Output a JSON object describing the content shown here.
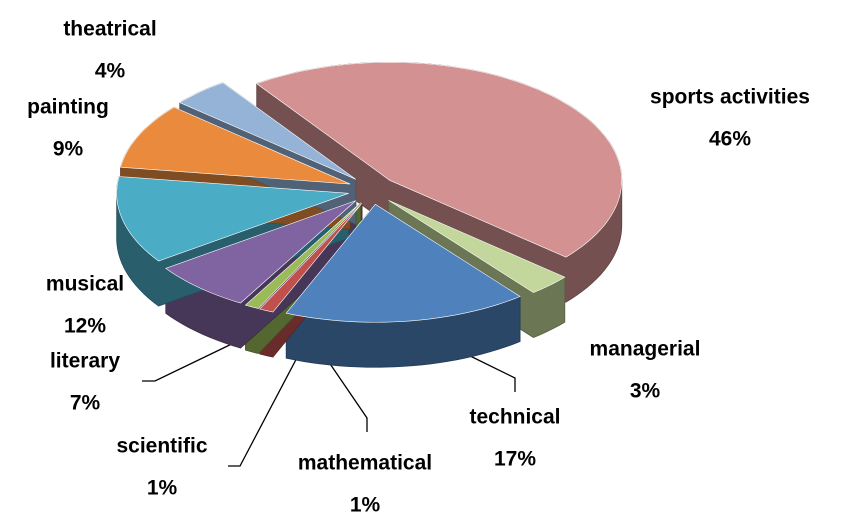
{
  "chart_data": {
    "type": "pie",
    "categories": [
      "sports activities",
      "managerial",
      "technical",
      "mathematical",
      "scientific",
      "literary",
      "musical",
      "painting",
      "theatrical"
    ],
    "values": [
      46,
      3,
      17,
      1,
      1,
      7,
      12,
      9,
      4
    ],
    "value_labels": [
      "46%",
      "3%",
      "17%",
      "1%",
      "1%",
      "7%",
      "12%",
      "9%",
      "4%"
    ],
    "colors": [
      "#d39291",
      "#c3d69b",
      "#4f81bd",
      "#c0504d",
      "#9bbb59",
      "#8064a2",
      "#4bacc6",
      "#e98a3c",
      "#95b3d7"
    ]
  }
}
